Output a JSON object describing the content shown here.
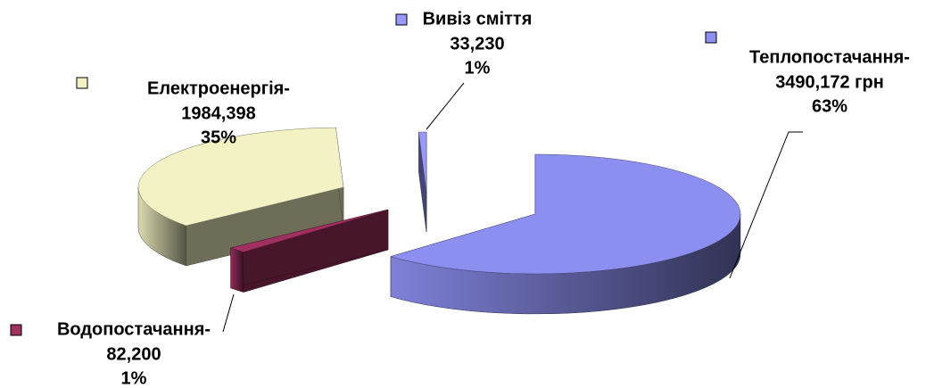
{
  "chart_data": {
    "type": "pie3d",
    "categories": [
      "Теплопостачання-",
      "Водопостачання-",
      "Електроенергія-",
      "Вивіз сміття"
    ],
    "values": [
      3490.172,
      82.2,
      1984.398,
      33.23
    ],
    "value_labels": [
      "3490,172 грн",
      "82,200",
      "1984,398",
      "33,230"
    ],
    "percentages": [
      63,
      1,
      35,
      1
    ],
    "percentage_labels": [
      "63%",
      "1%",
      "35%",
      "1%"
    ],
    "colors": [
      "#8c8ff0",
      "#a0305f",
      "#f2f2c4",
      "#9999ff"
    ]
  }
}
